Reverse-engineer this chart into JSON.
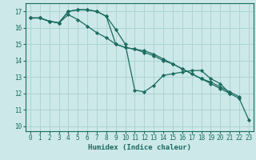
{
  "title": "",
  "xlabel": "Humidex (Indice chaleur)",
  "ylabel": "",
  "bg_color": "#cce8e8",
  "line_color": "#1a6b60",
  "grid_color": "#afd4d4",
  "xlim": [
    -0.5,
    23.5
  ],
  "ylim": [
    9.7,
    17.5
  ],
  "xticks": [
    0,
    1,
    2,
    3,
    4,
    5,
    6,
    7,
    8,
    9,
    10,
    11,
    12,
    13,
    14,
    15,
    16,
    17,
    18,
    19,
    20,
    21,
    22,
    23
  ],
  "yticks": [
    10,
    11,
    12,
    13,
    14,
    15,
    16,
    17
  ],
  "series": [
    {
      "x": [
        0,
        1,
        2,
        3,
        4,
        5,
        6,
        7,
        8,
        9,
        10,
        11,
        12,
        13,
        14,
        15,
        16,
        17,
        18,
        19,
        20,
        21
      ],
      "y": [
        16.6,
        16.6,
        16.4,
        16.3,
        17.0,
        17.1,
        17.1,
        17.0,
        16.7,
        15.9,
        15.0,
        12.2,
        12.1,
        12.5,
        13.1,
        13.2,
        13.3,
        13.4,
        13.4,
        12.9,
        12.6,
        12.0
      ]
    },
    {
      "x": [
        0,
        1,
        2,
        3,
        4,
        5,
        6,
        7,
        8,
        9,
        10,
        11,
        12,
        13,
        14,
        15,
        16,
        17,
        18,
        19,
        20,
        21,
        22
      ],
      "y": [
        16.6,
        16.6,
        16.4,
        16.3,
        17.0,
        17.1,
        17.1,
        17.0,
        16.7,
        15.0,
        14.8,
        14.7,
        14.6,
        14.4,
        14.1,
        13.8,
        13.5,
        13.2,
        12.9,
        12.7,
        12.4,
        12.1,
        11.8
      ]
    },
    {
      "x": [
        0,
        1,
        2,
        3,
        4,
        5,
        6,
        7,
        8,
        9,
        10,
        11,
        12,
        13,
        14,
        15,
        16,
        17,
        18,
        19,
        20,
        21,
        22,
        23
      ],
      "y": [
        16.6,
        16.6,
        16.4,
        16.3,
        16.8,
        16.5,
        16.1,
        15.7,
        15.4,
        15.0,
        14.8,
        14.7,
        14.5,
        14.3,
        14.0,
        13.8,
        13.5,
        13.2,
        12.9,
        12.6,
        12.3,
        12.0,
        11.7,
        10.4
      ]
    }
  ]
}
